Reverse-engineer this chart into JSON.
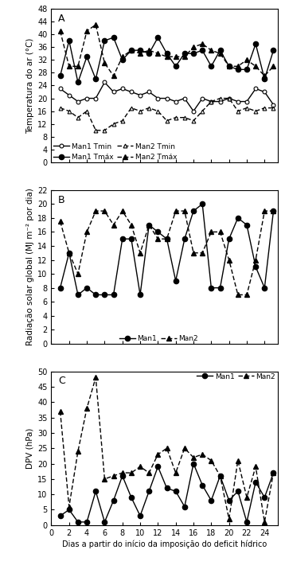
{
  "days_A": [
    1,
    2,
    3,
    4,
    5,
    6,
    7,
    8,
    9,
    10,
    11,
    12,
    13,
    14,
    15,
    16,
    17,
    18,
    19,
    20,
    21,
    22,
    23,
    24,
    25
  ],
  "man1_tmin": [
    23,
    21,
    19,
    20,
    20,
    25,
    22,
    23,
    22,
    21,
    22,
    20,
    20,
    19,
    20,
    16,
    20,
    19,
    19,
    20,
    19,
    19,
    23,
    22,
    18
  ],
  "man1_tmax": [
    27,
    38,
    25,
    33,
    26,
    38,
    39,
    32,
    35,
    35,
    34,
    39,
    34,
    30,
    34,
    34,
    35,
    30,
    35,
    30,
    29,
    29,
    37,
    26,
    35
  ],
  "man2_tmin": [
    17,
    16,
    14,
    16,
    10,
    10,
    12,
    13,
    17,
    16,
    17,
    16,
    13,
    14,
    14,
    13,
    16,
    19,
    20,
    20,
    16,
    17,
    16,
    17,
    17
  ],
  "man2_tmax": [
    41,
    30,
    30,
    41,
    43,
    31,
    27,
    33,
    35,
    34,
    35,
    34,
    33,
    33,
    33,
    36,
    37,
    35,
    34,
    30,
    30,
    32,
    30,
    27,
    30
  ],
  "days_B": [
    1,
    2,
    3,
    4,
    5,
    6,
    7,
    8,
    9,
    10,
    11,
    12,
    13,
    14,
    15,
    16,
    17,
    18,
    19,
    20,
    21,
    22,
    23,
    24,
    25
  ],
  "man1_rad": [
    8,
    13,
    7,
    8,
    7,
    7,
    7,
    15,
    15,
    7,
    17,
    16,
    15,
    9,
    15,
    19,
    20,
    8,
    8,
    15,
    18,
    17,
    11,
    8,
    19
  ],
  "man2_rad": [
    17.5,
    13,
    10,
    16,
    19,
    19,
    17,
    19,
    17,
    13,
    17,
    15,
    15,
    19,
    19,
    13,
    13,
    16,
    16,
    12,
    7,
    7,
    12,
    19,
    19
  ],
  "days_C": [
    1,
    2,
    3,
    4,
    5,
    6,
    7,
    8,
    9,
    10,
    11,
    12,
    13,
    14,
    15,
    16,
    17,
    18,
    19,
    20,
    21,
    22,
    23,
    24,
    25
  ],
  "man1_dpv": [
    3,
    5,
    1,
    1,
    11,
    1,
    8,
    16,
    9,
    3,
    11,
    19,
    12,
    11,
    6,
    20,
    13,
    8,
    16,
    8,
    11,
    1,
    14,
    9,
    17
  ],
  "man2_dpv": [
    37,
    6,
    24,
    38,
    48,
    15,
    16,
    17,
    17,
    19,
    17,
    23,
    25,
    17,
    25,
    22,
    23,
    21,
    16,
    2,
    21,
    9,
    19,
    1,
    17
  ],
  "panel_A_ylabel": "Temperatura do ar (°C)",
  "panel_B_ylabel": "Radiação solar global (MJ m⁻² por dia)",
  "panel_C_ylabel": "DPV (hPa)",
  "xlabel": "Dias a partir do início da imposição do deficit hídrico",
  "A_ylim": [
    0,
    48
  ],
  "A_yticks": [
    0,
    4,
    8,
    12,
    16,
    20,
    24,
    28,
    32,
    36,
    40,
    44,
    48
  ],
  "B_ylim": [
    0,
    22
  ],
  "B_yticks": [
    0,
    2,
    4,
    6,
    8,
    10,
    12,
    14,
    16,
    18,
    20,
    22
  ],
  "C_ylim": [
    0,
    50
  ],
  "C_yticks": [
    0,
    5,
    10,
    15,
    20,
    25,
    30,
    35,
    40,
    45,
    50
  ],
  "xlim": [
    0,
    25.5
  ],
  "xticks": [
    0,
    2,
    4,
    6,
    8,
    10,
    12,
    14,
    16,
    18,
    20,
    22,
    24
  ]
}
